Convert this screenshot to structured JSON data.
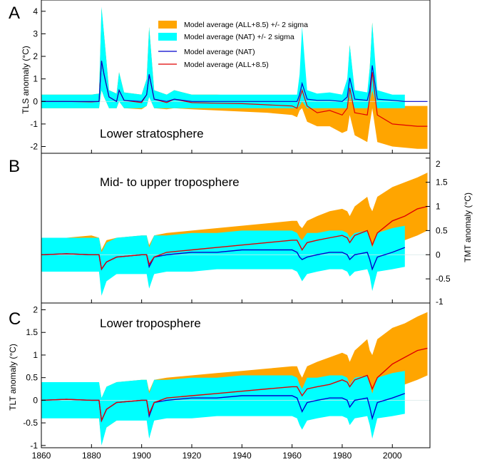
{
  "colors": {
    "all_band": "#ffa500",
    "nat_band": "#00ffff",
    "nat_line": "#0000cc",
    "all_line": "#e00000",
    "zero_line": "#d8e8e8"
  },
  "shared_x": {
    "xlim": [
      1860,
      2015
    ],
    "ticks": [
      1860,
      1880,
      1900,
      1920,
      1940,
      1960,
      1980,
      2000
    ]
  },
  "legend": {
    "all_band": "Model average (ALL+8.5) +/- 2 sigma",
    "nat_band": "Model average (NAT) +/- 2 sigma",
    "nat_line": "Model average (NAT)",
    "all_line": "Model average (ALL+8.5)"
  },
  "panels": [
    {
      "letter": "A",
      "title": "Lower stratosphere",
      "ylabel": "TLS anomaly (°C)",
      "yaxis_side": "left",
      "ylim": [
        -2.3,
        4.5
      ],
      "yticks": [
        -2,
        -1,
        0,
        1,
        2,
        3,
        4
      ]
    },
    {
      "letter": "B",
      "title": "Mid- to upper troposphere",
      "ylabel": "TMT anomaly (°C)",
      "yaxis_side": "right",
      "ylim": [
        -1,
        2.1
      ],
      "yticks": [
        -1,
        -0.5,
        0,
        0.5,
        1,
        1.5,
        2
      ]
    },
    {
      "letter": "C",
      "title": "Lower troposphere",
      "ylabel": "TLT anomaly (°C)",
      "yaxis_side": "left",
      "ylim": [
        -1.05,
        2.15
      ],
      "yticks": [
        -1,
        -0.5,
        0,
        0.5,
        1,
        1.5,
        2
      ]
    }
  ],
  "chart_data": [
    {
      "type": "area",
      "title": "Lower stratosphere",
      "xlabel": "",
      "ylabel": "TLS anomaly (°C)",
      "xlim": [
        1860,
        2015
      ],
      "ylim": [
        -2.3,
        4.5
      ],
      "legend_position": "top-right",
      "grid": false,
      "x": [
        1860,
        1870,
        1880,
        1883,
        1884,
        1885,
        1887,
        1890,
        1891,
        1893,
        1900,
        1902,
        1903,
        1905,
        1910,
        1913,
        1920,
        1930,
        1940,
        1950,
        1960,
        1962,
        1963,
        1964,
        1966,
        1970,
        1975,
        1980,
        1982,
        1983,
        1985,
        1990,
        1991,
        1992,
        1994,
        2000,
        2005,
        2010,
        2014
      ],
      "series": [
        {
          "name": "Model average (ALL+8.5)",
          "kind": "line",
          "values": [
            0,
            0,
            -0.02,
            0,
            1.8,
            1.2,
            0.2,
            0,
            0.5,
            0.05,
            -0.05,
            0.3,
            1.2,
            0.1,
            -0.05,
            0.1,
            -0.05,
            -0.08,
            -0.1,
            -0.15,
            -0.2,
            -0.3,
            0.1,
            0.5,
            -0.2,
            -0.5,
            -0.4,
            -0.6,
            -0.3,
            0.6,
            -0.5,
            -0.6,
            0.2,
            1.3,
            -0.6,
            -1.0,
            -1.05,
            -1.1,
            -1.1
          ]
        },
        {
          "name": "Model average (NAT)",
          "kind": "line",
          "values": [
            0,
            0,
            0,
            0,
            1.8,
            1.2,
            0.2,
            0,
            0.5,
            0.05,
            0,
            0.3,
            1.2,
            0.1,
            0,
            0.1,
            0,
            0,
            0,
            0,
            0,
            0,
            0.3,
            0.8,
            0.1,
            0.05,
            0.05,
            0,
            0.2,
            1.05,
            0.1,
            0.05,
            0.5,
            1.6,
            0.1,
            0.05,
            0,
            0,
            0
          ]
        },
        {
          "name": "Model average (ALL+8.5) +/- 2 sigma",
          "kind": "band",
          "lower": [
            -0.3,
            -0.3,
            -0.3,
            -0.3,
            0.5,
            0.2,
            -0.3,
            -0.3,
            0,
            -0.3,
            -0.35,
            -0.2,
            0.2,
            -0.3,
            -0.35,
            -0.3,
            -0.35,
            -0.4,
            -0.45,
            -0.5,
            -0.6,
            -0.7,
            -0.4,
            -0.3,
            -0.9,
            -1.1,
            -1.1,
            -1.4,
            -1.3,
            -0.6,
            -1.5,
            -1.8,
            -1.0,
            -0.3,
            -1.8,
            -2.0,
            -2.05,
            -2.1,
            -2.1
          ],
          "upper": [
            0.3,
            0.3,
            0.3,
            0.35,
            4.1,
            3.0,
            0.5,
            0.35,
            1.3,
            0.4,
            0.3,
            1.0,
            3.3,
            0.5,
            0.3,
            0.5,
            0.3,
            0.3,
            0.25,
            0.2,
            0.15,
            0.1,
            1.0,
            3.0,
            0.4,
            0.1,
            0.2,
            0,
            0.8,
            2.5,
            0.4,
            0.2,
            1.5,
            3.5,
            0.2,
            -0.1,
            -0.2,
            -0.2,
            -0.2
          ]
        },
        {
          "name": "Model average (NAT) +/- 2 sigma",
          "kind": "band",
          "lower": [
            -0.3,
            -0.3,
            -0.3,
            -0.3,
            0.5,
            0.2,
            -0.3,
            -0.3,
            0,
            -0.3,
            -0.3,
            -0.2,
            0.2,
            -0.3,
            -0.3,
            -0.3,
            -0.3,
            -0.3,
            -0.3,
            -0.3,
            -0.3,
            -0.3,
            -0.2,
            0,
            -0.3,
            -0.3,
            -0.3,
            -0.3,
            -0.3,
            0.2,
            -0.3,
            -0.3,
            0,
            0.5,
            -0.3,
            -0.3,
            -0.3,
            null,
            null
          ],
          "upper": [
            0.3,
            0.3,
            0.3,
            0.35,
            4.2,
            3.0,
            0.5,
            0.35,
            1.3,
            0.4,
            0.3,
            1.0,
            3.3,
            0.5,
            0.3,
            0.5,
            0.3,
            0.3,
            0.3,
            0.3,
            0.3,
            0.3,
            1.2,
            3.3,
            0.5,
            0.35,
            0.4,
            0.3,
            1.0,
            2.5,
            0.5,
            0.4,
            1.5,
            3.5,
            0.5,
            0.3,
            0.3,
            null,
            null
          ]
        }
      ]
    },
    {
      "type": "area",
      "title": "Mid- to upper troposphere",
      "xlabel": "",
      "ylabel": "TMT anomaly (°C)",
      "xlim": [
        1860,
        2015
      ],
      "ylim": [
        -1,
        2.1
      ],
      "grid": false,
      "x": [
        1860,
        1870,
        1880,
        1883,
        1884,
        1886,
        1890,
        1900,
        1902,
        1903,
        1905,
        1910,
        1920,
        1930,
        1940,
        1950,
        1960,
        1962,
        1963,
        1964,
        1966,
        1970,
        1975,
        1980,
        1982,
        1983,
        1985,
        1990,
        1991,
        1992,
        1994,
        2000,
        2005,
        2010,
        2014
      ],
      "series": [
        {
          "name": "Model average (ALL+8.5)",
          "kind": "line",
          "values": [
            0,
            0.02,
            0,
            0,
            -0.3,
            -0.15,
            -0.05,
            0,
            0,
            -0.2,
            -0.05,
            0.05,
            0.1,
            0.15,
            0.2,
            0.25,
            0.3,
            0.3,
            0.2,
            0.1,
            0.25,
            0.3,
            0.35,
            0.4,
            0.35,
            0.25,
            0.4,
            0.5,
            0.35,
            0.2,
            0.45,
            0.7,
            0.8,
            0.95,
            1.0
          ]
        },
        {
          "name": "Model average (NAT)",
          "kind": "line",
          "values": [
            0,
            0.02,
            0,
            0,
            -0.3,
            -0.15,
            -0.05,
            0,
            0,
            -0.25,
            -0.05,
            0,
            0.05,
            0.05,
            0.1,
            0.1,
            0.1,
            0.05,
            -0.05,
            -0.1,
            -0.05,
            0,
            0.05,
            0.05,
            0,
            -0.1,
            0,
            0.05,
            -0.1,
            -0.3,
            -0.05,
            0.05,
            0.15,
            null,
            null
          ]
        },
        {
          "name": "Model average (ALL+8.5) +/- 2 sigma",
          "kind": "band",
          "lower": [
            -0.3,
            -0.3,
            -0.35,
            -0.35,
            -0.7,
            -0.5,
            -0.4,
            -0.35,
            -0.35,
            -0.6,
            -0.4,
            -0.3,
            -0.3,
            -0.25,
            -0.2,
            -0.2,
            -0.15,
            -0.15,
            -0.25,
            -0.35,
            -0.2,
            -0.15,
            -0.1,
            -0.05,
            -0.1,
            -0.2,
            -0.05,
            0,
            -0.15,
            -0.3,
            0,
            0.2,
            0.3,
            0.4,
            0.5
          ],
          "upper": [
            0.35,
            0.35,
            0.4,
            0.35,
            0.1,
            0.3,
            0.35,
            0.4,
            0.4,
            0.2,
            0.4,
            0.45,
            0.5,
            0.55,
            0.6,
            0.65,
            0.7,
            0.7,
            0.6,
            0.55,
            0.7,
            0.8,
            0.9,
            0.95,
            0.9,
            0.8,
            1.0,
            1.2,
            1.0,
            0.9,
            1.2,
            1.4,
            1.5,
            1.6,
            1.7
          ]
        },
        {
          "name": "Model average (NAT) +/- 2 sigma",
          "kind": "band",
          "lower": [
            -0.35,
            -0.35,
            -0.35,
            -0.35,
            -0.85,
            -0.55,
            -0.4,
            -0.4,
            -0.4,
            -0.7,
            -0.4,
            -0.35,
            -0.35,
            -0.3,
            -0.3,
            -0.3,
            -0.3,
            -0.35,
            -0.45,
            -0.55,
            -0.4,
            -0.35,
            -0.3,
            -0.3,
            -0.35,
            -0.45,
            -0.35,
            -0.3,
            -0.45,
            -0.75,
            -0.35,
            -0.3,
            -0.25,
            null,
            null
          ],
          "upper": [
            0.35,
            0.35,
            0.35,
            0.35,
            0.05,
            0.25,
            0.35,
            0.4,
            0.4,
            0.15,
            0.4,
            0.4,
            0.45,
            0.45,
            0.5,
            0.5,
            0.5,
            0.45,
            0.35,
            0.3,
            0.45,
            0.45,
            0.5,
            0.5,
            0.45,
            0.35,
            0.45,
            0.5,
            0.35,
            0.15,
            0.45,
            0.55,
            0.6,
            null,
            null
          ]
        }
      ]
    },
    {
      "type": "area",
      "title": "Lower troposphere",
      "xlabel": "",
      "ylabel": "TLT anomaly (°C)",
      "xlim": [
        1860,
        2015
      ],
      "ylim": [
        -1.05,
        2.15
      ],
      "grid": false,
      "x": [
        1860,
        1870,
        1880,
        1883,
        1884,
        1886,
        1890,
        1900,
        1902,
        1903,
        1905,
        1910,
        1920,
        1930,
        1940,
        1950,
        1960,
        1962,
        1963,
        1964,
        1966,
        1970,
        1975,
        1980,
        1982,
        1983,
        1985,
        1990,
        1991,
        1992,
        1994,
        2000,
        2005,
        2010,
        2014
      ],
      "series": [
        {
          "name": "Model average (ALL+8.5)",
          "kind": "line",
          "values": [
            0,
            0.02,
            0,
            0,
            -0.45,
            -0.2,
            -0.05,
            0,
            0,
            -0.3,
            -0.05,
            0.05,
            0.1,
            0.15,
            0.2,
            0.25,
            0.3,
            0.3,
            0.2,
            0.1,
            0.25,
            0.3,
            0.35,
            0.45,
            0.4,
            0.3,
            0.45,
            0.55,
            0.4,
            0.25,
            0.5,
            0.8,
            0.95,
            1.1,
            1.15
          ]
        },
        {
          "name": "Model average (NAT)",
          "kind": "line",
          "values": [
            0,
            0.02,
            0,
            0,
            -0.45,
            -0.2,
            -0.05,
            0,
            0,
            -0.35,
            -0.05,
            0,
            0.05,
            0.05,
            0.1,
            0.1,
            0.1,
            0.05,
            -0.1,
            -0.25,
            -0.05,
            0,
            0.05,
            0.05,
            0,
            -0.15,
            0,
            0.05,
            -0.15,
            -0.4,
            -0.05,
            0.05,
            0.15,
            null,
            null
          ]
        },
        {
          "name": "Model average (ALL+8.5) +/- 2 sigma",
          "kind": "band",
          "lower": [
            -0.35,
            -0.35,
            -0.4,
            -0.4,
            -0.9,
            -0.6,
            -0.45,
            -0.4,
            -0.4,
            -0.75,
            -0.45,
            -0.35,
            -0.3,
            -0.25,
            -0.2,
            -0.2,
            -0.15,
            -0.15,
            -0.3,
            -0.5,
            -0.2,
            -0.15,
            -0.1,
            -0.05,
            -0.1,
            -0.25,
            -0.05,
            0,
            -0.2,
            -0.4,
            0,
            0.2,
            0.35,
            0.45,
            0.55
          ],
          "upper": [
            0.4,
            0.4,
            0.4,
            0.4,
            0.05,
            0.3,
            0.4,
            0.45,
            0.45,
            0.2,
            0.45,
            0.5,
            0.55,
            0.6,
            0.65,
            0.7,
            0.75,
            0.75,
            0.6,
            0.5,
            0.75,
            0.85,
            0.95,
            1.05,
            1.0,
            0.85,
            1.1,
            1.35,
            1.1,
            1.0,
            1.35,
            1.6,
            1.7,
            1.85,
            1.95
          ]
        },
        {
          "name": "Model average (NAT) +/- 2 sigma",
          "kind": "band",
          "lower": [
            -0.4,
            -0.4,
            -0.4,
            -0.4,
            -1.0,
            -0.6,
            -0.45,
            -0.45,
            -0.45,
            -0.85,
            -0.45,
            -0.4,
            -0.4,
            -0.35,
            -0.35,
            -0.35,
            -0.35,
            -0.4,
            -0.55,
            -0.65,
            -0.45,
            -0.4,
            -0.35,
            -0.35,
            -0.4,
            -0.55,
            -0.4,
            -0.35,
            -0.55,
            -0.85,
            -0.4,
            -0.35,
            -0.3,
            null,
            null
          ],
          "upper": [
            0.4,
            0.4,
            0.4,
            0.4,
            0.05,
            0.3,
            0.4,
            0.45,
            0.45,
            0.15,
            0.45,
            0.45,
            0.5,
            0.5,
            0.55,
            0.55,
            0.55,
            0.5,
            0.35,
            0.25,
            0.5,
            0.5,
            0.55,
            0.55,
            0.5,
            0.35,
            0.5,
            0.55,
            0.35,
            0.15,
            0.5,
            0.6,
            0.65,
            null,
            null
          ]
        }
      ]
    }
  ]
}
